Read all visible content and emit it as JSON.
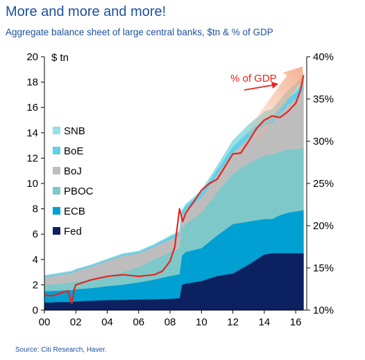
{
  "title": "More and more and more!",
  "subtitle": "Aggregate balance sheet of large central banks, $tn & % of GDP",
  "source": "Source: Citi Research, Haver.",
  "chart_data": {
    "type": "area",
    "x": [
      2000,
      2001,
      2001.75,
      2002,
      2003,
      2004,
      2005,
      2006,
      2007,
      2008,
      2008.6,
      2008.75,
      2009,
      2010,
      2011,
      2012,
      2013,
      2014,
      2014.5,
      2015,
      2015.5,
      2016,
      2016.5
    ],
    "series": [
      {
        "name": "Fed",
        "color": "#0b2160",
        "values": [
          0.6,
          0.65,
          0.65,
          0.7,
          0.75,
          0.8,
          0.82,
          0.85,
          0.87,
          0.9,
          0.95,
          2.0,
          2.1,
          2.3,
          2.7,
          2.9,
          3.6,
          4.4,
          4.5,
          4.5,
          4.5,
          4.5,
          4.5
        ]
      },
      {
        "name": "ECB",
        "color": "#00a0d2",
        "values": [
          0.9,
          0.9,
          0.95,
          0.95,
          1.0,
          1.1,
          1.2,
          1.35,
          1.55,
          1.8,
          1.9,
          2.3,
          2.5,
          2.6,
          3.2,
          3.9,
          3.4,
          2.8,
          2.7,
          3.0,
          3.2,
          3.3,
          3.4
        ]
      },
      {
        "name": "PBOC",
        "color": "#7fc8c9",
        "values": [
          0.5,
          0.55,
          0.6,
          0.6,
          0.7,
          0.8,
          1.0,
          1.2,
          1.6,
          1.9,
          2.0,
          2.1,
          2.2,
          2.8,
          3.4,
          4.0,
          4.6,
          5.0,
          5.1,
          5.0,
          5.0,
          4.9,
          4.9
        ]
      },
      {
        "name": "BoJ",
        "color": "#bdbdbd",
        "values": [
          0.6,
          0.7,
          0.75,
          0.85,
          1.0,
          1.2,
          1.3,
          1.1,
          1.0,
          1.0,
          1.0,
          1.05,
          1.1,
          1.2,
          1.4,
          1.6,
          2.0,
          2.4,
          2.5,
          3.0,
          3.5,
          4.0,
          4.6
        ]
      },
      {
        "name": "BoE",
        "color": "#5fcfea",
        "values": [
          0.1,
          0.1,
          0.1,
          0.1,
          0.1,
          0.1,
          0.1,
          0.12,
          0.14,
          0.2,
          0.3,
          0.35,
          0.35,
          0.38,
          0.4,
          0.5,
          0.5,
          0.5,
          0.5,
          0.5,
          0.5,
          0.5,
          0.6
        ]
      },
      {
        "name": "SNB",
        "color": "#9adfe3",
        "values": [
          0.05,
          0.05,
          0.05,
          0.05,
          0.05,
          0.05,
          0.05,
          0.06,
          0.06,
          0.08,
          0.1,
          0.12,
          0.12,
          0.2,
          0.3,
          0.5,
          0.55,
          0.55,
          0.55,
          0.6,
          0.65,
          0.65,
          0.7
        ]
      }
    ],
    "gdp_line": {
      "name": "% of GDP",
      "color": "#e8231c",
      "x": [
        2000,
        2000.5,
        2001,
        2001.5,
        2001.75,
        2001.9,
        2002,
        2003,
        2004,
        2005,
        2006,
        2007,
        2007.5,
        2008,
        2008.3,
        2008.6,
        2008.8,
        2009,
        2009.5,
        2010,
        2010.5,
        2011,
        2011.5,
        2012,
        2012.5,
        2013,
        2013.5,
        2014,
        2014.5,
        2015,
        2015.5,
        2016,
        2016.3,
        2016.5
      ],
      "values": [
        11.8,
        11.7,
        12.0,
        12.3,
        10.8,
        12.5,
        13.0,
        13.6,
        14.0,
        14.2,
        14.0,
        14.2,
        14.6,
        15.8,
        17.5,
        22.0,
        20.5,
        21.5,
        22.8,
        24.2,
        25.0,
        25.5,
        27.0,
        28.5,
        28.6,
        30.0,
        31.5,
        32.5,
        33.0,
        32.8,
        33.5,
        34.5,
        36.0,
        37.8
      ]
    },
    "annotation": "% of GDP",
    "y_left": {
      "label": "$ tn",
      "min": 0,
      "max": 20,
      "ticks": [
        "0",
        "2",
        "4",
        "6",
        "8",
        "10",
        "12",
        "14",
        "16",
        "18",
        "20"
      ]
    },
    "y_right": {
      "min": 10,
      "max": 40,
      "ticks": [
        "10%",
        "15%",
        "20%",
        "25%",
        "30%",
        "35%",
        "40%"
      ]
    },
    "x_axis": {
      "min": 2000,
      "max": 2016.7,
      "ticks": [
        "00",
        "02",
        "04",
        "06",
        "08",
        "10",
        "12",
        "14",
        "16"
      ]
    },
    "legend": [
      "SNB",
      "BoE",
      "BoJ",
      "PBOC",
      "ECB",
      "Fed"
    ],
    "legend_position": "left"
  }
}
